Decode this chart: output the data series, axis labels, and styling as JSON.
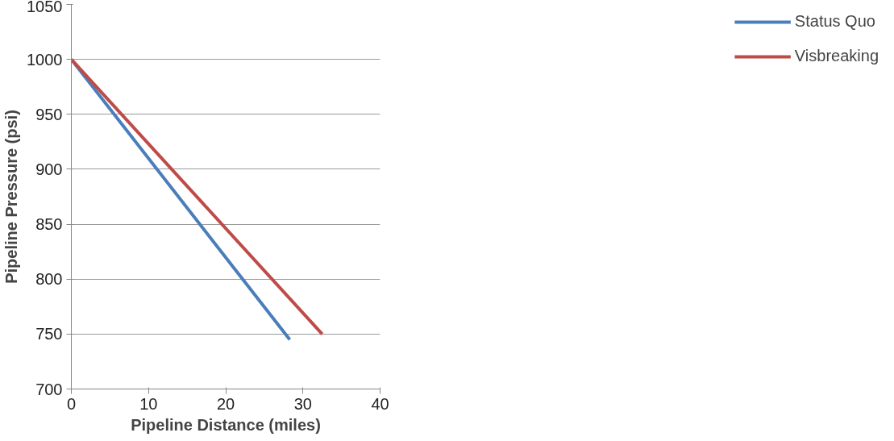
{
  "chart_data": {
    "type": "line",
    "xlabel": "Pipeline Distance (miles)",
    "ylabel": "Pipeline Pressure (psi)",
    "series": [
      {
        "name": "Status Quo",
        "color": "#4a7ebb",
        "x": [
          0,
          28.3
        ],
        "values": [
          1000,
          745
        ]
      },
      {
        "name": "Visbreaking",
        "color": "#be4b48",
        "x": [
          0,
          32.5
        ],
        "values": [
          1000,
          750
        ]
      }
    ],
    "xlim": [
      0,
      40
    ],
    "xticks": [
      0,
      10,
      20,
      30,
      40
    ],
    "ylim": [
      700,
      1050
    ],
    "yticks": [
      700,
      750,
      800,
      850,
      900,
      950,
      1000,
      1050
    ],
    "grid": "y",
    "legend": "right",
    "marker": "none",
    "line_style": "solid"
  }
}
